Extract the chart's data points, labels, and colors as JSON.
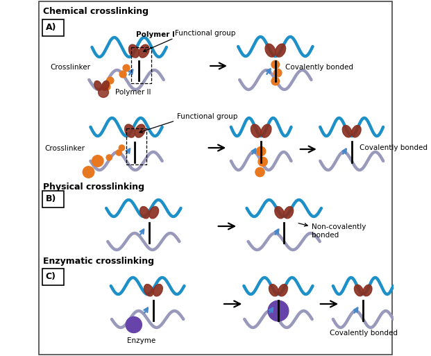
{
  "fiber_blue": "#1E90C8",
  "fiber_gray": "#9999BB",
  "func_red": "#8B3020",
  "crosslinker_orange": "#E87820",
  "blue_arrow_color": "#4488CC",
  "enzyme_purple": "#6644AA",
  "black": "#111111",
  "white": "#ffffff",
  "title_chemical": "Chemical crosslinking",
  "title_physical": "Physical crosslinking",
  "title_enzymatic": "Enzymatic crosslinking",
  "lbl_A": "A)",
  "lbl_B": "B)",
  "lbl_C": "C)",
  "lbl_polymerI": "Polymer I",
  "lbl_polymerII": "Polymer II",
  "lbl_crosslinker": "Crosslinker",
  "lbl_func": "Functional group",
  "lbl_cov": "Covalently bonded",
  "lbl_noncov": "Non-covalently\nbonded",
  "lbl_enzyme": "Enzyme"
}
